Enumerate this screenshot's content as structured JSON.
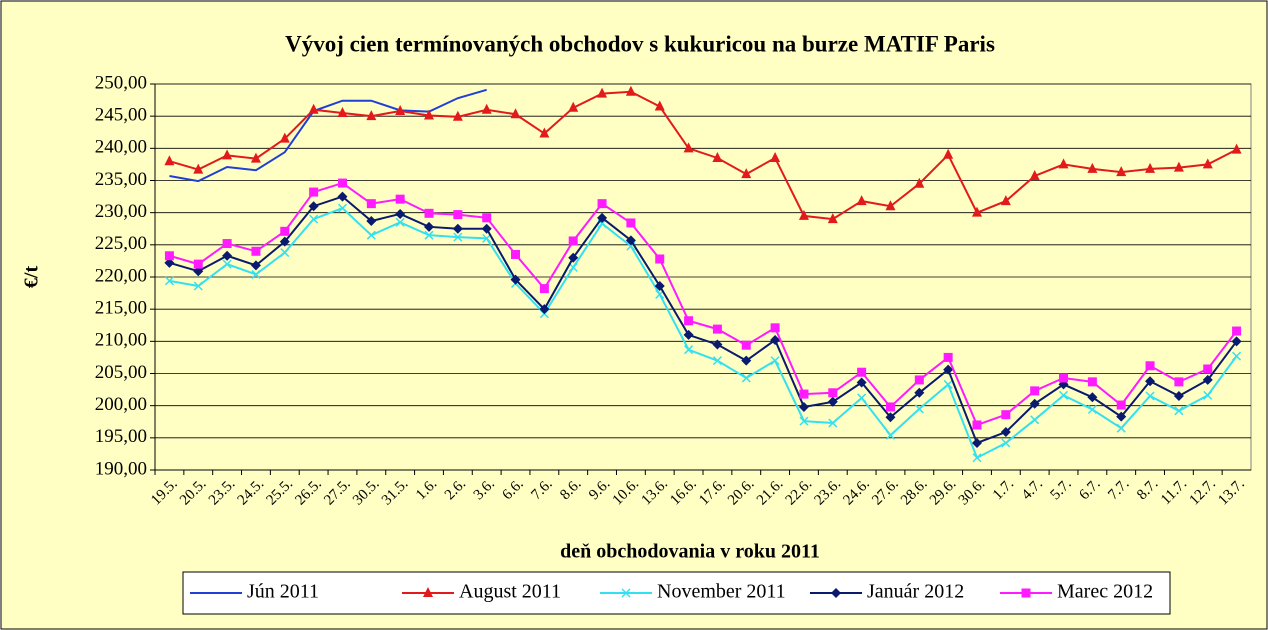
{
  "chart_data": {
    "type": "line",
    "title": "Vývoj cien termínovaných obchodov s kukuricou na burze MATIF Paris",
    "x_label": "deň obchodovania v roku 2011",
    "y_label": "€/t",
    "categories": [
      "19.5.",
      "20.5.",
      "23.5.",
      "24.5.",
      "25.5.",
      "26.5.",
      "27.5.",
      "30.5.",
      "31.5.",
      "1.6.",
      "2.6.",
      "3.6.",
      "6.6.",
      "7.6.",
      "8.6.",
      "9.6.",
      "10.6.",
      "13.6.",
      "16.6.",
      "17.6.",
      "20.6.",
      "21.6.",
      "22.6.",
      "23.6.",
      "24.6.",
      "27.6.",
      "28.6.",
      "29.6.",
      "30.6.",
      "1.7.",
      "4.7.",
      "5.7.",
      "6.7.",
      "7.7.",
      "8.7.",
      "11.7.",
      "12.7.",
      "13.7."
    ],
    "ylim": [
      190,
      250
    ],
    "yticks": [
      {
        "value": 190,
        "label": "190,00"
      },
      {
        "value": 195,
        "label": "195,00"
      },
      {
        "value": 200,
        "label": "200,00"
      },
      {
        "value": 205,
        "label": "205,00"
      },
      {
        "value": 210,
        "label": "210,00"
      },
      {
        "value": 215,
        "label": "215,00"
      },
      {
        "value": 220,
        "label": "220,00"
      },
      {
        "value": 225,
        "label": "225,00"
      },
      {
        "value": 230,
        "label": "230,00"
      },
      {
        "value": 235,
        "label": "235,00"
      },
      {
        "value": 240,
        "label": "240,00"
      },
      {
        "value": 245,
        "label": "245,00"
      },
      {
        "value": 250,
        "label": "250,00"
      }
    ],
    "grid": true,
    "legend": "bottom",
    "series": [
      {
        "name": "Jún 2011",
        "color": "#1f3fd6",
        "marker": "none",
        "values": [
          235.7,
          234.9,
          237.1,
          236.6,
          239.4,
          245.8,
          247.4,
          247.4,
          245.9,
          245.7,
          247.8,
          249.1,
          null,
          null,
          null,
          null,
          null,
          null,
          null,
          null,
          null,
          null,
          null,
          null,
          null,
          null,
          null,
          null,
          null,
          null,
          null,
          null,
          null,
          null,
          null,
          null,
          null,
          null
        ]
      },
      {
        "name": "August 2011",
        "color": "#e31a1c",
        "marker": "triangle",
        "values": [
          238.0,
          236.7,
          238.9,
          238.4,
          241.5,
          246.0,
          245.5,
          245.0,
          245.8,
          245.1,
          244.9,
          246.0,
          245.3,
          242.3,
          246.3,
          248.5,
          248.8,
          246.5,
          240.0,
          238.5,
          236.0,
          238.5,
          229.5,
          229.0,
          231.8,
          231.0,
          234.5,
          239.0,
          230.0,
          231.8,
          235.7,
          237.5,
          236.8,
          236.3,
          236.8,
          237.0,
          237.5,
          239.8
        ]
      },
      {
        "name": "November 2011",
        "color": "#33e0f0",
        "marker": "x",
        "values": [
          219.4,
          218.6,
          222.0,
          220.4,
          223.8,
          229.0,
          230.7,
          226.5,
          228.5,
          226.5,
          226.2,
          226.0,
          219.0,
          214.3,
          221.5,
          228.3,
          224.8,
          217.3,
          208.7,
          207.0,
          204.3,
          207.0,
          197.6,
          197.3,
          201.2,
          195.4,
          199.5,
          203.3,
          191.9,
          194.2,
          197.8,
          201.6,
          199.4,
          196.5,
          201.5,
          199.2,
          201.6,
          207.7
        ]
      },
      {
        "name": "Január 2012",
        "color": "#0a1a6e",
        "marker": "diamond",
        "values": [
          222.2,
          220.9,
          223.3,
          221.8,
          225.5,
          231.0,
          232.5,
          228.7,
          229.8,
          227.8,
          227.5,
          227.5,
          219.6,
          215.0,
          223.0,
          229.2,
          225.7,
          218.6,
          211.0,
          209.5,
          207.0,
          210.2,
          199.8,
          200.6,
          203.6,
          198.2,
          202.0,
          205.6,
          194.2,
          195.9,
          200.3,
          203.3,
          201.3,
          198.3,
          203.8,
          201.5,
          204.0,
          210.0
        ]
      },
      {
        "name": "Marec 2012",
        "color": "#ff1aff",
        "marker": "square",
        "values": [
          223.3,
          222.0,
          225.2,
          224.0,
          227.1,
          233.2,
          234.6,
          231.4,
          232.1,
          229.9,
          229.7,
          229.2,
          223.5,
          218.2,
          225.6,
          231.4,
          228.4,
          222.8,
          213.2,
          211.9,
          209.4,
          212.1,
          201.8,
          202.0,
          205.2,
          199.8,
          204.0,
          207.5,
          197.0,
          198.6,
          202.3,
          204.3,
          203.7,
          200.1,
          206.2,
          203.7,
          205.7,
          211.6
        ]
      }
    ]
  }
}
